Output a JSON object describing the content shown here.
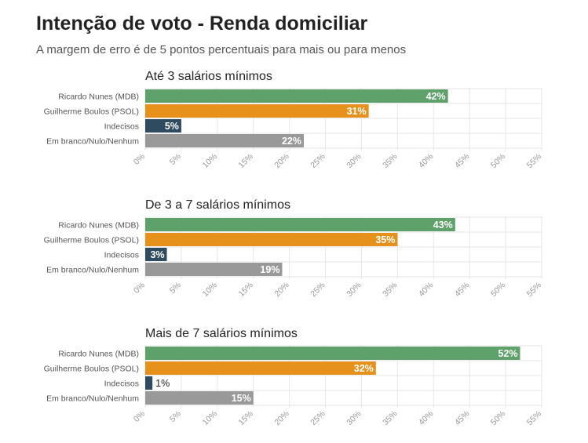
{
  "header": {
    "title": "Intenção de voto - Renda domiciliar",
    "subtitle": "A margem de erro é de 5 pontos percentuais para mais ou para menos"
  },
  "colors": {
    "nunes": "#5fa16b",
    "boulos": "#e5911b",
    "indecisos": "#2f4b5f",
    "branco": "#999999",
    "grid": "#e6e6e6",
    "tick_label": "#999999",
    "category_label": "#555555"
  },
  "chart_data": [
    {
      "type": "bar",
      "orientation": "horizontal",
      "title": "Até 3 salários mínimos",
      "categories": [
        "Ricardo Nunes (MDB)",
        "Guilherme Boulos (PSOL)",
        "Indecisos",
        "Em branco/Nulo/Nenhum"
      ],
      "values": [
        42,
        31,
        5,
        22
      ],
      "value_labels": [
        "42%",
        "31%",
        "5%",
        "22%"
      ],
      "xlim": [
        0,
        55
      ],
      "xticks": [
        "0%",
        "5%",
        "10%",
        "15%",
        "20%",
        "25%",
        "30%",
        "35%",
        "40%",
        "45%",
        "50%",
        "55%"
      ],
      "grid": true
    },
    {
      "type": "bar",
      "orientation": "horizontal",
      "title": "De 3 a 7 salários mínimos",
      "categories": [
        "Ricardo Nunes (MDB)",
        "Guilherme Boulos (PSOL)",
        "Indecisos",
        "Em branco/Nulo/Nenhum"
      ],
      "values": [
        43,
        35,
        3,
        19
      ],
      "value_labels": [
        "43%",
        "35%",
        "3%",
        "19%"
      ],
      "xlim": [
        0,
        55
      ],
      "xticks": [
        "0%",
        "5%",
        "10%",
        "15%",
        "20%",
        "25%",
        "30%",
        "35%",
        "40%",
        "45%",
        "50%",
        "55%"
      ],
      "grid": true
    },
    {
      "type": "bar",
      "orientation": "horizontal",
      "title": "Mais de 7 salários mínimos",
      "categories": [
        "Ricardo Nunes (MDB)",
        "Guilherme Boulos (PSOL)",
        "Indecisos",
        "Em branco/Nulo/Nenhum"
      ],
      "values": [
        52,
        32,
        1,
        15
      ],
      "value_labels": [
        "52%",
        "32%",
        "1%",
        "15%"
      ],
      "xlim": [
        0,
        55
      ],
      "xticks": [
        "0%",
        "5%",
        "10%",
        "15%",
        "20%",
        "25%",
        "30%",
        "35%",
        "40%",
        "45%",
        "50%",
        "55%"
      ],
      "grid": true
    }
  ]
}
